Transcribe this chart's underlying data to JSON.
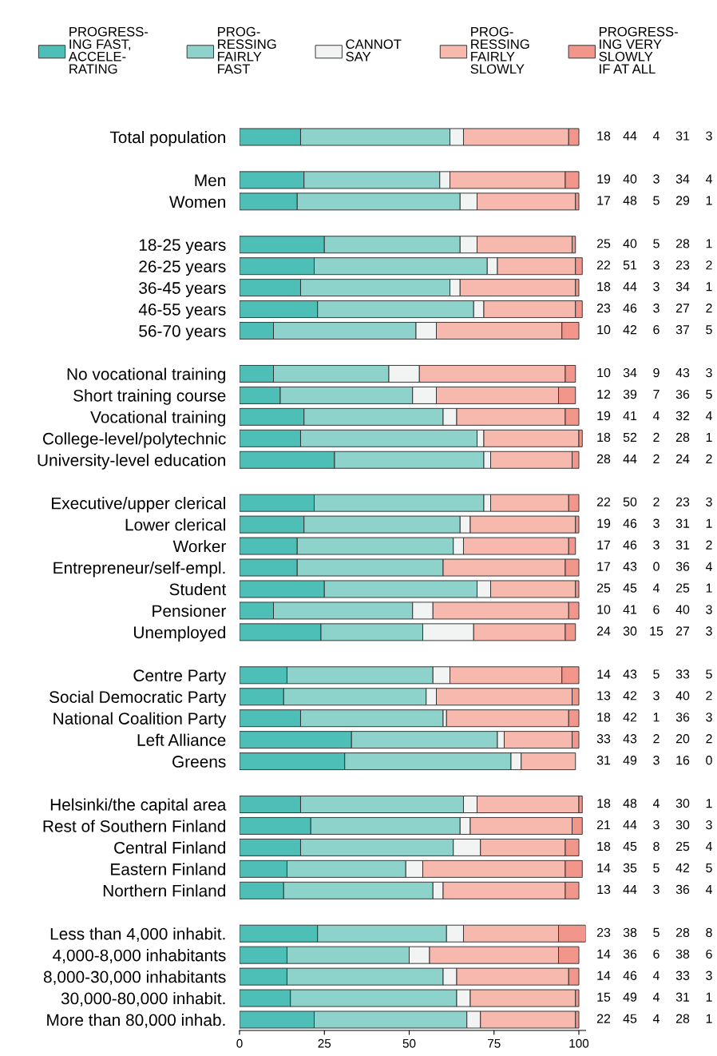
{
  "chart_data": {
    "type": "bar",
    "orientation": "horizontal",
    "stacked": true,
    "data_labels": true,
    "legend": "top",
    "grid": false,
    "xlim": [
      0,
      102
    ],
    "xticks": [
      0,
      25,
      50,
      75,
      100
    ],
    "categories": [
      "Total population",
      null,
      "Men",
      "Women",
      null,
      "18-25 years",
      "26-25 years",
      "36-45 years",
      "46-55 years",
      "56-70 years",
      null,
      "No vocational training",
      "Short training course",
      "Vocational training",
      "College-level/polytechnic",
      "University-level education",
      null,
      "Executive/upper clerical",
      "Lower clerical",
      "Worker",
      "Entrepreneur/self-empl.",
      "Student",
      "Pensioner",
      "Unemployed",
      null,
      "Centre Party",
      "Social Democratic Party",
      "National Coalition Party",
      "Left Alliance",
      "Greens",
      null,
      "Helsinki/the capital area",
      "Rest of Southern Finland",
      "Central Finland",
      "Eastern Finland",
      "Northern Finland",
      null,
      "Less than 4,000 inhabit.",
      "4,000-8,000 inhabitants",
      "8,000-30,000 inhabitants",
      "30,000-80,000 inhabit.",
      "More than 80,000 inhab."
    ],
    "series": [
      {
        "name": "PROGRESS-\nING FAST,\nACCELE-\nRATING",
        "color": "#4dbfb6",
        "values": [
          18,
          null,
          19,
          17,
          null,
          25,
          22,
          18,
          23,
          10,
          null,
          10,
          12,
          19,
          18,
          28,
          null,
          22,
          19,
          17,
          17,
          25,
          10,
          24,
          null,
          14,
          13,
          18,
          33,
          31,
          null,
          18,
          21,
          18,
          14,
          13,
          null,
          23,
          14,
          14,
          15,
          22
        ]
      },
      {
        "name": "PROG-\nRESSING\nFAIRLY\nFAST",
        "color": "#8dd3cc",
        "values": [
          44,
          null,
          40,
          48,
          null,
          40,
          51,
          44,
          46,
          42,
          null,
          34,
          39,
          41,
          52,
          44,
          null,
          50,
          46,
          46,
          43,
          45,
          41,
          30,
          null,
          43,
          42,
          42,
          43,
          49,
          null,
          48,
          44,
          45,
          35,
          44,
          null,
          38,
          36,
          46,
          49,
          45
        ]
      },
      {
        "name": "CANNOT\nSAY",
        "color": "#f2f3f3",
        "values": [
          4,
          null,
          3,
          5,
          null,
          5,
          3,
          3,
          3,
          6,
          null,
          9,
          7,
          4,
          2,
          2,
          null,
          2,
          3,
          3,
          0,
          4,
          6,
          15,
          null,
          5,
          3,
          1,
          2,
          3,
          null,
          4,
          3,
          8,
          5,
          3,
          null,
          5,
          6,
          4,
          4,
          4
        ]
      },
      {
        "name": "PROG-\nRESSING\nFAIRLY\nSLOWLY",
        "color": "#f7b9ae",
        "values": [
          31,
          null,
          34,
          29,
          null,
          28,
          23,
          34,
          27,
          37,
          null,
          43,
          36,
          32,
          28,
          24,
          null,
          23,
          31,
          31,
          36,
          25,
          40,
          27,
          null,
          33,
          40,
          36,
          20,
          16,
          null,
          30,
          30,
          25,
          42,
          36,
          null,
          28,
          38,
          33,
          31,
          28
        ]
      },
      {
        "name": "PROGRESS-\nING VERY\nSLOWLY\nIF AT ALL",
        "color": "#f2968c",
        "values": [
          3,
          null,
          4,
          1,
          null,
          1,
          2,
          1,
          2,
          5,
          null,
          3,
          5,
          4,
          1,
          2,
          null,
          3,
          1,
          2,
          4,
          1,
          3,
          3,
          null,
          5,
          2,
          3,
          2,
          0,
          null,
          1,
          3,
          4,
          5,
          4,
          null,
          8,
          6,
          3,
          1,
          1
        ]
      }
    ]
  }
}
